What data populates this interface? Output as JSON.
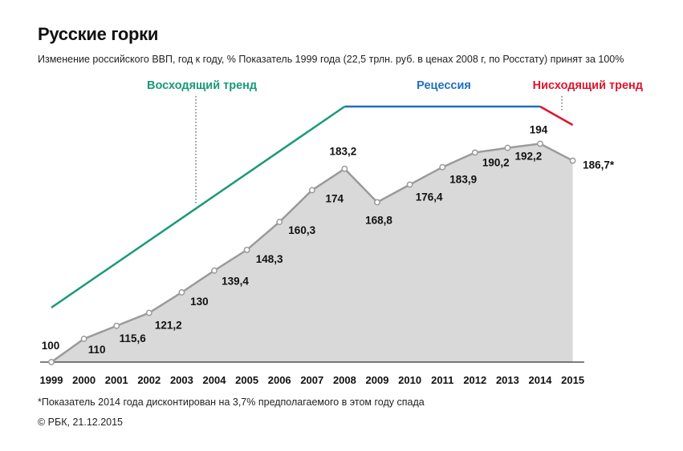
{
  "header": {
    "title": "Русские горки",
    "subtitle": "Изменение российского ВВП, год к году, %  Показатель 1999 года (22,5 трлн. руб. в ценах 2008 г, по Росстату) принят за 100%"
  },
  "footer": {
    "footnote": "*Показатель 2014 года дисконтирован на 3,7% предполагаемого в этом году спада",
    "credit": "© РБК, 21.12.2015"
  },
  "chart_data": {
    "type": "area",
    "x": [
      "1999",
      "2000",
      "2001",
      "2002",
      "2003",
      "2004",
      "2005",
      "2006",
      "2007",
      "2008",
      "2009",
      "2010",
      "2011",
      "2012",
      "2013",
      "2014",
      "2015"
    ],
    "values": [
      100,
      110,
      115.6,
      121.2,
      130,
      139.4,
      148.3,
      160.3,
      174,
      183.2,
      168.8,
      176.4,
      183.9,
      190.2,
      192.2,
      194,
      186.7
    ],
    "data_labels": [
      "100",
      "110",
      "115,6",
      "121,2",
      "130",
      "139,4",
      "148,3",
      "160,3",
      "174",
      "183,2",
      "168,8",
      "176,4",
      "183,9",
      "190,2",
      "192,2",
      "194",
      "186,7*"
    ],
    "ylim": [
      100,
      210
    ],
    "area_color": "#d9d9d9",
    "line_color": "#9a9a9a",
    "trends": [
      {
        "label": "Восходящий тренд",
        "color": "#1a9a78",
        "x_from": "1999",
        "x_to": "2008"
      },
      {
        "label": "Рецессия",
        "color": "#1f6fc0",
        "x_from": "2008",
        "x_to": "2014"
      },
      {
        "label": "Нисходящий тренд",
        "color": "#e0142d",
        "x_from": "2014",
        "x_to": "2015"
      }
    ],
    "xlabel": "",
    "ylabel": "",
    "grid": false
  }
}
